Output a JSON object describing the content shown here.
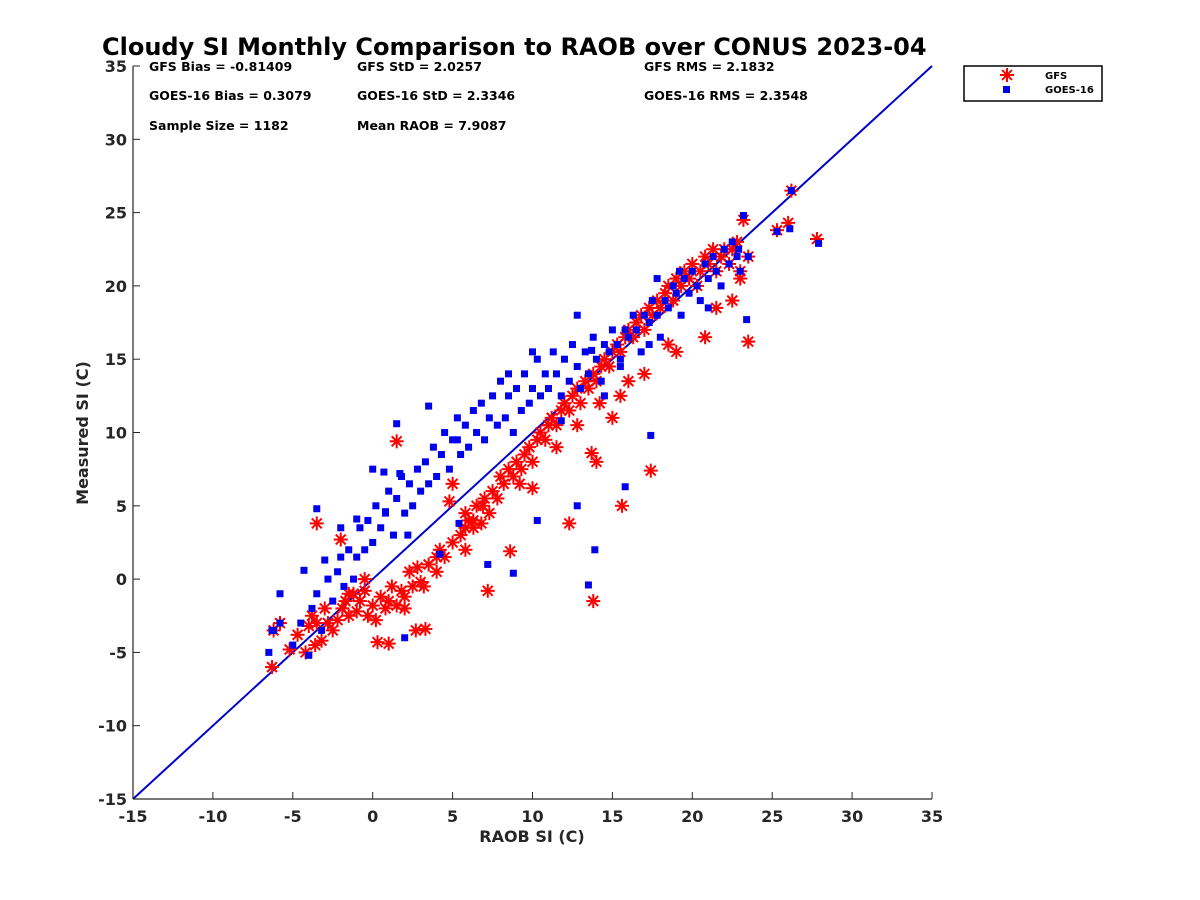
{
  "chart_data": {
    "type": "scatter",
    "title": "Cloudy SI Monthly Comparison to RAOB over CONUS 2023-04",
    "xlabel": "RAOB SI (C)",
    "ylabel": "Measured SI (C)",
    "xlim": [
      -15,
      35
    ],
    "ylim": [
      -15,
      35
    ],
    "xticks": [
      "-15",
      "-10",
      "-5",
      "0",
      "5",
      "10",
      "15",
      "20",
      "25",
      "30",
      "35"
    ],
    "yticks": [
      "-15",
      "-10",
      "-5",
      "0",
      "5",
      "10",
      "15",
      "20",
      "25",
      "30",
      "35"
    ],
    "grid": false,
    "legend_position": "outside-top-right",
    "stats": [
      [
        "GFS Bias = -0.81409",
        "GFS StD = 2.0257",
        "GFS RMS = 2.1832"
      ],
      [
        "GOES-16 Bias = 0.3079",
        "GOES-16 StD = 2.3346",
        "GOES-16 RMS = 2.3548"
      ],
      [
        "Sample Size = 1182",
        "Mean RAOB = 7.9087",
        ""
      ]
    ],
    "reference_line": {
      "x": [
        -15,
        35
      ],
      "y": [
        -15,
        35
      ],
      "color": "#0000cc"
    },
    "series": [
      {
        "name": "GFS",
        "marker": "asterisk",
        "color": "#ff0000",
        "x": [
          -6.3,
          -6.2,
          -5.8,
          -5.2,
          -4.7,
          -4.2,
          -4.0,
          -3.8,
          -3.6,
          -3.5,
          -3.2,
          -3.0,
          -2.8,
          -2.5,
          -2.2,
          -1.9,
          -1.7,
          -1.5,
          -1.2,
          -1.0,
          -0.8,
          -0.5,
          -0.3,
          0.0,
          0.2,
          0.5,
          0.8,
          1.0,
          1.2,
          1.5,
          1.8,
          2.0,
          2.3,
          2.5,
          2.8,
          3.0,
          3.5,
          4.0,
          4.2,
          4.5,
          5.0,
          5.5,
          5.8,
          6.0,
          6.3,
          6.5,
          6.8,
          7.0,
          7.3,
          7.5,
          7.8,
          8.0,
          8.2,
          8.5,
          8.8,
          9.0,
          9.3,
          9.5,
          9.8,
          10.0,
          10.3,
          10.5,
          10.8,
          11.0,
          11.2,
          11.5,
          11.8,
          12.0,
          12.3,
          12.5,
          12.8,
          13.0,
          13.3,
          13.5,
          13.8,
          14.0,
          14.3,
          14.5,
          14.8,
          15.0,
          15.3,
          15.5,
          15.8,
          16.0,
          16.3,
          16.5,
          16.8,
          17.0,
          17.3,
          17.5,
          17.8,
          18.0,
          18.3,
          18.5,
          18.8,
          19.0,
          19.3,
          19.5,
          19.8,
          20.0,
          20.3,
          20.5,
          20.8,
          21.0,
          21.3,
          21.5,
          21.8,
          22.0,
          22.3,
          22.5,
          22.8,
          23.0,
          23.2,
          23.5,
          25.3,
          26.0,
          26.2,
          27.8,
          23.5,
          20.8,
          17.4,
          15.6,
          14.0,
          13.7,
          13.8,
          12.3,
          11.0,
          10.0,
          8.6,
          7.2,
          6.3,
          5.8,
          5.0,
          4.8,
          3.3,
          2.7,
          2.0,
          1.5,
          1.0,
          -3.5,
          -2.0,
          -1.5,
          -0.5,
          0.3,
          3.2,
          4.0,
          5.8,
          6.9,
          9.2,
          11.5,
          12.8,
          14.2,
          15.0,
          15.5,
          16.0,
          17.0,
          18.5,
          19.0,
          21.5,
          22.5,
          23.0
        ],
        "y": [
          -6.0,
          -3.5,
          -3.0,
          -4.8,
          -3.8,
          -5.0,
          -3.2,
          -2.5,
          -4.5,
          -3.0,
          -4.2,
          -2.0,
          -3.0,
          -3.5,
          -2.8,
          -2.0,
          -1.5,
          -2.5,
          -1.0,
          -2.2,
          -1.5,
          -0.8,
          -2.5,
          -1.8,
          -2.8,
          -1.2,
          -2.0,
          -1.5,
          -0.5,
          -1.8,
          -0.8,
          -1.2,
          0.5,
          -0.5,
          0.8,
          -0.2,
          1.0,
          0.5,
          2.0,
          1.5,
          2.5,
          3.0,
          2.0,
          4.0,
          3.5,
          5.0,
          3.8,
          5.5,
          4.5,
          6.0,
          5.5,
          7.0,
          6.5,
          7.5,
          7.0,
          8.0,
          7.5,
          8.5,
          9.0,
          8.0,
          9.5,
          10.0,
          9.5,
          10.5,
          11.0,
          10.5,
          11.5,
          12.0,
          11.5,
          12.5,
          13.0,
          12.0,
          13.5,
          13.0,
          14.0,
          13.5,
          14.5,
          15.0,
          14.5,
          15.5,
          16.0,
          15.5,
          16.5,
          17.0,
          16.5,
          17.5,
          18.0,
          17.0,
          18.5,
          18.0,
          19.0,
          18.5,
          19.5,
          20.0,
          19.0,
          20.5,
          20.0,
          21.0,
          20.5,
          21.5,
          20.0,
          21.0,
          22.0,
          21.5,
          22.5,
          21.0,
          22.0,
          22.5,
          21.5,
          22.5,
          23.0,
          21.0,
          24.5,
          22.0,
          23.8,
          24.3,
          26.5,
          23.2,
          16.2,
          16.5,
          7.4,
          5.0,
          8.0,
          8.6,
          -1.5,
          3.8,
          10.5,
          6.2,
          1.9,
          -0.8,
          4.0,
          4.5,
          6.5,
          5.3,
          -3.4,
          -3.5,
          -2.0,
          9.4,
          -4.4,
          3.8,
          2.7,
          -1.0,
          0.0,
          -4.3,
          -0.5,
          1.5,
          3.5,
          5.0,
          6.5,
          9.0,
          10.5,
          12.0,
          11.0,
          12.5,
          13.5,
          14.0,
          16.0,
          15.5,
          18.5,
          19.0,
          20.5
        ]
      },
      {
        "name": "GOES-16",
        "marker": "square",
        "color": "#0000ee",
        "x": [
          -6.5,
          -6.3,
          -5.8,
          -5.0,
          -4.5,
          -4.0,
          -3.8,
          -3.5,
          -3.5,
          -3.2,
          -2.8,
          -2.5,
          -2.2,
          -2.0,
          -1.8,
          -1.5,
          -1.2,
          -1.0,
          -0.8,
          -0.5,
          -0.3,
          0.0,
          0.2,
          0.5,
          0.8,
          1.0,
          1.3,
          1.5,
          1.8,
          2.0,
          2.3,
          2.5,
          2.8,
          3.0,
          3.3,
          3.5,
          3.8,
          4.0,
          4.3,
          4.5,
          4.8,
          5.0,
          5.3,
          5.5,
          5.8,
          6.0,
          6.3,
          6.5,
          6.8,
          7.0,
          7.3,
          7.5,
          7.8,
          8.0,
          8.3,
          8.5,
          8.8,
          9.0,
          9.3,
          9.5,
          9.8,
          10.0,
          10.3,
          10.5,
          10.8,
          11.0,
          11.3,
          11.5,
          11.8,
          12.0,
          12.3,
          12.5,
          12.8,
          13.0,
          13.3,
          13.5,
          13.8,
          14.0,
          14.3,
          14.5,
          14.8,
          15.0,
          15.3,
          15.5,
          15.8,
          16.0,
          16.3,
          16.5,
          16.8,
          17.0,
          17.3,
          17.5,
          17.8,
          18.0,
          18.3,
          18.5,
          18.8,
          19.0,
          19.3,
          19.5,
          19.8,
          20.0,
          20.3,
          20.5,
          20.8,
          21.0,
          21.3,
          21.5,
          21.8,
          22.0,
          22.3,
          22.5,
          22.8,
          23.0,
          23.2,
          23.5,
          26.2,
          26.1,
          27.9,
          25.3,
          23.4,
          21.0,
          17.4,
          15.8,
          13.7,
          13.9,
          13.5,
          12.8,
          10.3,
          8.8,
          7.2,
          5.4,
          4.2,
          2.0,
          1.5,
          0.0,
          -1.0,
          -2.0,
          -3.0,
          -5.8,
          -6.2,
          -4.3,
          5.3,
          11.8,
          14.5,
          17.3,
          8.5,
          10.0,
          3.5,
          12.8,
          15.5,
          17.8,
          19.2,
          22.9,
          0.7,
          1.7,
          0.8,
          2.2
        ],
        "y": [
          -5.0,
          -3.5,
          -3.0,
          -4.5,
          -3.0,
          -5.2,
          -2.0,
          -1.0,
          4.8,
          -3.5,
          0.0,
          -1.5,
          0.5,
          1.5,
          -0.5,
          2.0,
          0.0,
          1.5,
          3.5,
          2.0,
          4.0,
          2.5,
          5.0,
          3.5,
          4.5,
          6.0,
          3.0,
          5.5,
          7.0,
          4.5,
          6.5,
          5.0,
          7.5,
          6.0,
          8.0,
          6.5,
          9.0,
          7.0,
          8.5,
          10.0,
          7.5,
          9.5,
          11.0,
          8.5,
          10.5,
          9.0,
          11.5,
          10.0,
          12.0,
          9.5,
          11.0,
          12.5,
          10.5,
          13.5,
          11.0,
          12.5,
          10.0,
          13.0,
          11.5,
          14.0,
          12.0,
          13.0,
          15.0,
          12.5,
          14.0,
          13.0,
          15.5,
          14.0,
          12.5,
          15.0,
          13.5,
          16.0,
          14.5,
          13.0,
          15.5,
          14.0,
          16.5,
          15.0,
          13.5,
          16.0,
          15.5,
          17.0,
          16.0,
          14.5,
          17.0,
          16.5,
          18.0,
          17.0,
          15.5,
          18.0,
          17.5,
          19.0,
          18.0,
          16.5,
          19.0,
          18.5,
          20.0,
          19.5,
          18.0,
          20.5,
          19.5,
          21.0,
          20.0,
          19.0,
          21.5,
          20.5,
          22.0,
          21.0,
          20.0,
          22.5,
          21.5,
          23.0,
          22.0,
          21.0,
          24.8,
          22.0,
          26.5,
          23.9,
          22.9,
          23.7,
          17.7,
          18.5,
          9.8,
          6.3,
          15.6,
          2.0,
          -0.4,
          5.0,
          4.0,
          0.4,
          1.0,
          3.8,
          1.7,
          -4.0,
          10.6,
          7.5,
          4.1,
          3.5,
          1.3,
          -1.0,
          -3.5,
          0.6,
          9.5,
          10.8,
          12.5,
          16.0,
          14.0,
          15.5,
          11.8,
          18.0,
          15.0,
          20.5,
          21.0,
          22.5,
          7.3,
          7.2,
          4.6,
          3.0
        ]
      }
    ]
  }
}
